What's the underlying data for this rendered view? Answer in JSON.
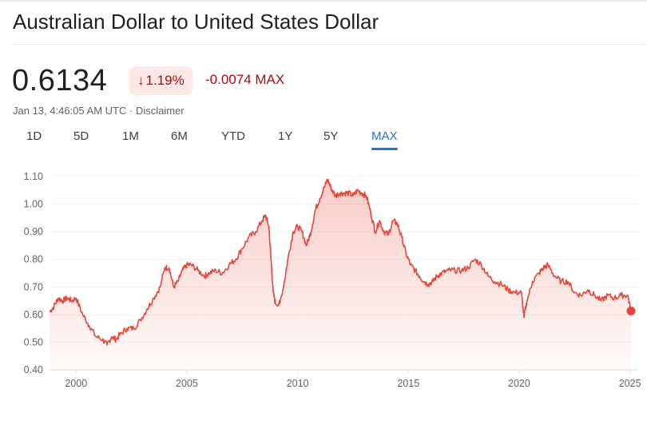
{
  "header": {
    "title": "Australian Dollar to United States Dollar"
  },
  "quote": {
    "price": "0.6134",
    "change_pct": "1.19%",
    "change_abs": "-0.0074 MAX",
    "timestamp": "Jan 13, 4:46:05 AM UTC",
    "separator": "·",
    "disclaimer": "Disclaimer"
  },
  "colors": {
    "accent": "#1a73e8",
    "negative": "#a50e0e",
    "negative_bg": "#fce8e6",
    "line": "#e3483a"
  },
  "tabs": [
    {
      "label": "1D",
      "active": false
    },
    {
      "label": "5D",
      "active": false
    },
    {
      "label": "1M",
      "active": false
    },
    {
      "label": "6M",
      "active": false
    },
    {
      "label": "YTD",
      "active": false
    },
    {
      "label": "1Y",
      "active": false
    },
    {
      "label": "5Y",
      "active": false
    },
    {
      "label": "MAX",
      "active": true
    }
  ],
  "icons": {
    "change_direction": "arrow-down-icon"
  },
  "chart_data": {
    "type": "area",
    "title": "",
    "xlabel": "",
    "ylabel": "",
    "xlim": [
      1998.8,
      2025.05
    ],
    "ylim": [
      0.4,
      1.1
    ],
    "x_ticks": [
      "2000",
      "2005",
      "2010",
      "2015",
      "2020",
      "2025"
    ],
    "y_ticks": [
      "1.10",
      "1.00",
      "0.90",
      "0.80",
      "0.70",
      "0.60",
      "0.50",
      "0.40"
    ],
    "grid": true,
    "series": [
      {
        "name": "",
        "x": [
          1998.8,
          1999.0,
          1999.2,
          1999.4,
          1999.6,
          1999.8,
          2000.0,
          2000.3,
          2000.6,
          2000.9,
          2001.2,
          2001.4,
          2001.6,
          2001.8,
          2002.0,
          2002.3,
          2002.6,
          2002.9,
          2003.2,
          2003.5,
          2003.8,
          2004.0,
          2004.2,
          2004.4,
          2004.6,
          2004.8,
          2005.0,
          2005.2,
          2005.5,
          2005.8,
          2006.0,
          2006.3,
          2006.6,
          2006.9,
          2007.2,
          2007.5,
          2007.8,
          2008.1,
          2008.4,
          2008.55,
          2008.7,
          2008.8,
          2008.9,
          2009.0,
          2009.2,
          2009.4,
          2009.6,
          2009.8,
          2010.0,
          2010.2,
          2010.4,
          2010.6,
          2010.8,
          2011.0,
          2011.2,
          2011.35,
          2011.5,
          2011.7,
          2011.9,
          2012.1,
          2012.3,
          2012.5,
          2012.7,
          2012.9,
          2013.1,
          2013.3,
          2013.5,
          2013.7,
          2013.9,
          2014.1,
          2014.3,
          2014.5,
          2014.7,
          2014.9,
          2015.1,
          2015.3,
          2015.5,
          2015.7,
          2015.9,
          2016.1,
          2016.3,
          2016.5,
          2016.8,
          2017.1,
          2017.4,
          2017.7,
          2018.0,
          2018.3,
          2018.6,
          2018.9,
          2019.2,
          2019.5,
          2019.8,
          2020.1,
          2020.22,
          2020.35,
          2020.6,
          2020.9,
          2021.1,
          2021.3,
          2021.6,
          2021.9,
          2022.2,
          2022.5,
          2022.8,
          2023.1,
          2023.4,
          2023.7,
          2024.0,
          2024.3,
          2024.6,
          2024.9,
          2025.05
        ],
        "values": [
          0.61,
          0.63,
          0.66,
          0.65,
          0.66,
          0.65,
          0.66,
          0.6,
          0.56,
          0.52,
          0.51,
          0.49,
          0.52,
          0.51,
          0.53,
          0.55,
          0.55,
          0.58,
          0.62,
          0.66,
          0.7,
          0.77,
          0.77,
          0.7,
          0.72,
          0.76,
          0.78,
          0.78,
          0.76,
          0.74,
          0.75,
          0.76,
          0.75,
          0.78,
          0.8,
          0.84,
          0.88,
          0.9,
          0.94,
          0.96,
          0.92,
          0.8,
          0.68,
          0.64,
          0.64,
          0.72,
          0.82,
          0.9,
          0.92,
          0.9,
          0.85,
          0.9,
          0.98,
          1.02,
          1.06,
          1.09,
          1.06,
          1.03,
          1.04,
          1.04,
          1.04,
          1.03,
          1.05,
          1.04,
          1.03,
          0.97,
          0.9,
          0.94,
          0.9,
          0.89,
          0.94,
          0.93,
          0.88,
          0.82,
          0.78,
          0.76,
          0.74,
          0.72,
          0.71,
          0.72,
          0.74,
          0.75,
          0.76,
          0.76,
          0.76,
          0.77,
          0.8,
          0.78,
          0.74,
          0.72,
          0.71,
          0.69,
          0.68,
          0.68,
          0.59,
          0.65,
          0.72,
          0.75,
          0.77,
          0.78,
          0.74,
          0.72,
          0.72,
          0.68,
          0.67,
          0.69,
          0.67,
          0.65,
          0.67,
          0.66,
          0.67,
          0.67,
          0.6134
        ]
      }
    ],
    "last_point": {
      "x": 2025.05,
      "value": 0.6134
    }
  }
}
